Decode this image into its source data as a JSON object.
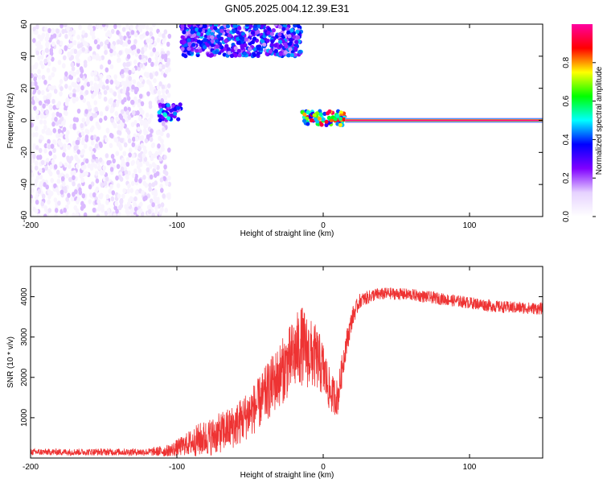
{
  "title": "GN05.2025.004.12.39.E31",
  "chart_data": [
    {
      "type": "heatmap",
      "xlabel": "Height of straight line (km)",
      "ylabel": "Frequency (Hz)",
      "xlim": [
        -200,
        150
      ],
      "ylim": [
        -60,
        60
      ],
      "x_ticks": [
        -200,
        -100,
        0,
        100
      ],
      "y_ticks": [
        -60,
        -40,
        -20,
        0,
        20,
        40,
        60
      ],
      "grid": false,
      "colorbar": {
        "label": "Normalized spectral amplitude",
        "range": [
          0,
          1
        ],
        "ticks": [
          "0.0",
          "0.2",
          "0.4",
          "0.6",
          "0.8"
        ],
        "colors": [
          "#ffffff",
          "#e6d2ff",
          "#8000ff",
          "#0000ff",
          "#00ffff",
          "#00ff00",
          "#ffff00",
          "#ff0000",
          "#ff00a0"
        ]
      },
      "regions": [
        {
          "x": [
            -200,
            -105
          ],
          "freq": [
            -60,
            60
          ],
          "amplitude": 0.05,
          "kind": "noise"
        },
        {
          "x": [
            -112,
            -97
          ],
          "freq": [
            0,
            10
          ],
          "amplitude": 0.4
        },
        {
          "x": [
            -97,
            -15
          ],
          "freq": [
            40,
            60
          ],
          "amplitude": 0.35
        },
        {
          "x": [
            -15,
            15
          ],
          "freq": [
            -3,
            6
          ],
          "amplitude": 0.7
        },
        {
          "x": [
            15,
            150
          ],
          "freq": [
            -2,
            2
          ],
          "amplitude": 1.0
        }
      ]
    },
    {
      "type": "line",
      "xlabel": "Height of straight line (km)",
      "ylabel": "SNR (10 * v/v)",
      "xlim": [
        -200,
        150
      ],
      "ylim": [
        0,
        4750
      ],
      "x_ticks": [
        -200,
        -100,
        0,
        100
      ],
      "y_ticks": [
        1000,
        2000,
        3000,
        4000
      ],
      "grid": false,
      "series_color": "#ee3333",
      "envelope": {
        "x": [
          -200,
          -120,
          -105,
          -95,
          -85,
          -75,
          -60,
          -45,
          -35,
          -25,
          -15,
          -10,
          -5,
          0,
          5,
          10,
          15,
          20,
          25,
          35,
          45,
          60,
          80,
          100,
          120,
          150
        ],
        "mean": [
          150,
          150,
          180,
          320,
          450,
          550,
          800,
          1300,
          1800,
          2300,
          2800,
          2600,
          2500,
          2200,
          1600,
          1500,
          2700,
          3500,
          3900,
          4050,
          4080,
          4050,
          3950,
          3850,
          3750,
          3700
        ],
        "spread": [
          80,
          90,
          160,
          260,
          420,
          480,
          550,
          650,
          750,
          850,
          1000,
          900,
          800,
          700,
          500,
          450,
          350,
          250,
          180,
          160,
          150,
          150,
          150,
          150,
          150,
          150
        ]
      }
    }
  ]
}
